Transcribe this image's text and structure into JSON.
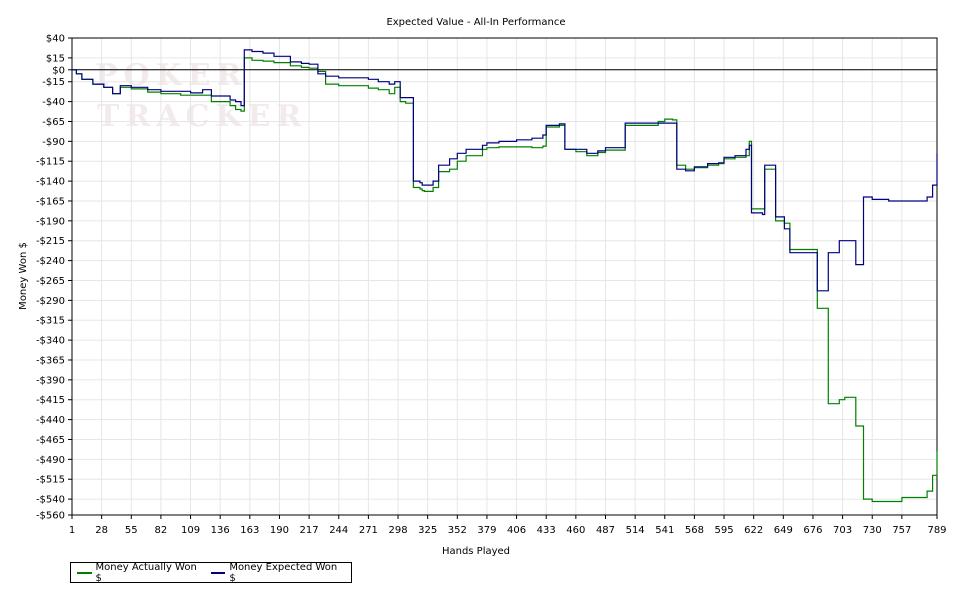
{
  "chart_data": {
    "type": "line",
    "title": "Expected Value - All-In Performance",
    "xlabel": "Hands Played",
    "ylabel": "Money Won $",
    "xlim": [
      1,
      789
    ],
    "ylim": [
      -560,
      40
    ],
    "x_ticks": [
      1,
      28,
      55,
      82,
      109,
      136,
      163,
      190,
      217,
      244,
      271,
      298,
      325,
      352,
      379,
      406,
      433,
      460,
      487,
      514,
      541,
      568,
      595,
      622,
      649,
      676,
      703,
      730,
      757,
      789
    ],
    "y_ticks": [
      40,
      15,
      0,
      -15,
      -40,
      -65,
      -90,
      -115,
      -140,
      -165,
      -190,
      -215,
      -240,
      -265,
      -290,
      -315,
      -340,
      -365,
      -390,
      -415,
      -440,
      -465,
      -490,
      -515,
      -540,
      -560
    ],
    "y_tick_labels": [
      "$40",
      "$15",
      "$0",
      "-$15",
      "-$40",
      "-$65",
      "-$90",
      "-$115",
      "-$140",
      "-$165",
      "-$190",
      "-$215",
      "-$240",
      "-$265",
      "-$290",
      "-$315",
      "-$340",
      "-$365",
      "-$390",
      "-$415",
      "-$440",
      "-$465",
      "-$490",
      "-$515",
      "-$540",
      "-$560"
    ],
    "grid": true,
    "legend_position": "bottom-left",
    "series": [
      {
        "name": "Money Actually Won $",
        "color": "#008000",
        "points": [
          [
            1,
            0
          ],
          [
            5,
            -5
          ],
          [
            10,
            -12
          ],
          [
            20,
            -18
          ],
          [
            30,
            -22
          ],
          [
            38,
            -30
          ],
          [
            45,
            -22
          ],
          [
            55,
            -24
          ],
          [
            70,
            -28
          ],
          [
            82,
            -30
          ],
          [
            100,
            -32
          ],
          [
            109,
            -32
          ],
          [
            120,
            -32
          ],
          [
            128,
            -40
          ],
          [
            136,
            -40
          ],
          [
            145,
            -45
          ],
          [
            150,
            -50
          ],
          [
            155,
            -52
          ],
          [
            158,
            15
          ],
          [
            165,
            12
          ],
          [
            175,
            11
          ],
          [
            185,
            9
          ],
          [
            200,
            5
          ],
          [
            210,
            3
          ],
          [
            217,
            2
          ],
          [
            225,
            -2
          ],
          [
            232,
            -18
          ],
          [
            244,
            -20
          ],
          [
            260,
            -20
          ],
          [
            271,
            -23
          ],
          [
            280,
            -25
          ],
          [
            290,
            -30
          ],
          [
            295,
            -22
          ],
          [
            300,
            -40
          ],
          [
            305,
            -42
          ],
          [
            308,
            -42
          ],
          [
            312,
            -148
          ],
          [
            318,
            -150
          ],
          [
            320,
            -152
          ],
          [
            322,
            -153
          ],
          [
            330,
            -148
          ],
          [
            335,
            -128
          ],
          [
            345,
            -125
          ],
          [
            352,
            -115
          ],
          [
            360,
            -108
          ],
          [
            375,
            -100
          ],
          [
            379,
            -98
          ],
          [
            390,
            -97
          ],
          [
            406,
            -97
          ],
          [
            420,
            -98
          ],
          [
            430,
            -96
          ],
          [
            433,
            -72
          ],
          [
            445,
            -70
          ],
          [
            450,
            -100
          ],
          [
            460,
            -103
          ],
          [
            470,
            -108
          ],
          [
            480,
            -104
          ],
          [
            487,
            -101
          ],
          [
            500,
            -101
          ],
          [
            505,
            -70
          ],
          [
            514,
            -70
          ],
          [
            530,
            -70
          ],
          [
            535,
            -65
          ],
          [
            541,
            -62
          ],
          [
            548,
            -63
          ],
          [
            552,
            -120
          ],
          [
            560,
            -125
          ],
          [
            568,
            -123
          ],
          [
            580,
            -120
          ],
          [
            590,
            -118
          ],
          [
            595,
            -112
          ],
          [
            605,
            -110
          ],
          [
            615,
            -108
          ],
          [
            618,
            -90
          ],
          [
            620,
            -175
          ],
          [
            630,
            -175
          ],
          [
            632,
            -125
          ],
          [
            640,
            -125
          ],
          [
            642,
            -190
          ],
          [
            650,
            -193
          ],
          [
            655,
            -226
          ],
          [
            676,
            -226
          ],
          [
            680,
            -300
          ],
          [
            690,
            -420
          ],
          [
            700,
            -415
          ],
          [
            705,
            -412
          ],
          [
            712,
            -412
          ],
          [
            715,
            -448
          ],
          [
            718,
            -448
          ],
          [
            722,
            -540
          ],
          [
            730,
            -543
          ],
          [
            745,
            -543
          ],
          [
            757,
            -538
          ],
          [
            770,
            -538
          ],
          [
            780,
            -530
          ],
          [
            785,
            -510
          ],
          [
            789,
            -480
          ]
        ]
      },
      {
        "name": "Money Expected Won $",
        "color": "#000080",
        "points": [
          [
            1,
            0
          ],
          [
            5,
            -5
          ],
          [
            10,
            -12
          ],
          [
            20,
            -18
          ],
          [
            30,
            -22
          ],
          [
            38,
            -30
          ],
          [
            45,
            -20
          ],
          [
            55,
            -22
          ],
          [
            70,
            -25
          ],
          [
            82,
            -27
          ],
          [
            100,
            -27
          ],
          [
            109,
            -29
          ],
          [
            120,
            -25
          ],
          [
            128,
            -33
          ],
          [
            136,
            -33
          ],
          [
            145,
            -38
          ],
          [
            150,
            -40
          ],
          [
            155,
            -45
          ],
          [
            158,
            25
          ],
          [
            165,
            23
          ],
          [
            175,
            21
          ],
          [
            185,
            17
          ],
          [
            200,
            10
          ],
          [
            210,
            8
          ],
          [
            217,
            7
          ],
          [
            225,
            -5
          ],
          [
            232,
            -8
          ],
          [
            244,
            -10
          ],
          [
            260,
            -10
          ],
          [
            271,
            -12
          ],
          [
            280,
            -15
          ],
          [
            290,
            -18
          ],
          [
            295,
            -15
          ],
          [
            300,
            -35
          ],
          [
            305,
            -35
          ],
          [
            308,
            -35
          ],
          [
            312,
            -140
          ],
          [
            318,
            -142
          ],
          [
            320,
            -145
          ],
          [
            322,
            -145
          ],
          [
            330,
            -140
          ],
          [
            335,
            -120
          ],
          [
            345,
            -112
          ],
          [
            352,
            -105
          ],
          [
            360,
            -100
          ],
          [
            375,
            -95
          ],
          [
            379,
            -92
          ],
          [
            390,
            -90
          ],
          [
            406,
            -88
          ],
          [
            420,
            -86
          ],
          [
            430,
            -82
          ],
          [
            433,
            -70
          ],
          [
            445,
            -68
          ],
          [
            450,
            -100
          ],
          [
            460,
            -100
          ],
          [
            470,
            -105
          ],
          [
            480,
            -102
          ],
          [
            487,
            -98
          ],
          [
            500,
            -98
          ],
          [
            505,
            -67
          ],
          [
            514,
            -67
          ],
          [
            530,
            -67
          ],
          [
            535,
            -67
          ],
          [
            541,
            -67
          ],
          [
            548,
            -67
          ],
          [
            552,
            -125
          ],
          [
            560,
            -127
          ],
          [
            568,
            -122
          ],
          [
            580,
            -118
          ],
          [
            590,
            -117
          ],
          [
            595,
            -110
          ],
          [
            605,
            -108
          ],
          [
            615,
            -100
          ],
          [
            618,
            -95
          ],
          [
            620,
            -180
          ],
          [
            630,
            -182
          ],
          [
            632,
            -120
          ],
          [
            640,
            -120
          ],
          [
            642,
            -185
          ],
          [
            650,
            -200
          ],
          [
            655,
            -230
          ],
          [
            676,
            -230
          ],
          [
            680,
            -278
          ],
          [
            690,
            -230
          ],
          [
            700,
            -215
          ],
          [
            705,
            -215
          ],
          [
            712,
            -215
          ],
          [
            715,
            -245
          ],
          [
            718,
            -245
          ],
          [
            722,
            -160
          ],
          [
            730,
            -163
          ],
          [
            745,
            -165
          ],
          [
            757,
            -165
          ],
          [
            770,
            -165
          ],
          [
            780,
            -160
          ],
          [
            785,
            -145
          ],
          [
            789,
            -105
          ]
        ]
      }
    ]
  }
}
